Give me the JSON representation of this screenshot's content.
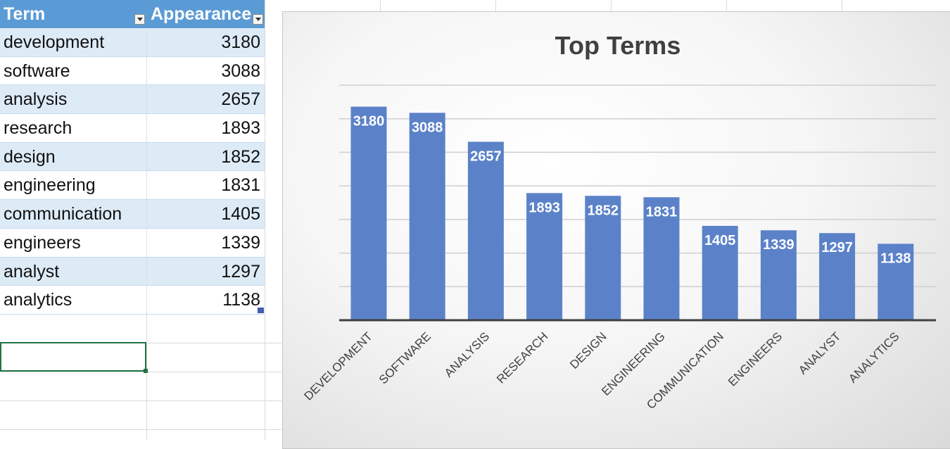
{
  "table": {
    "headers": {
      "term": "Term",
      "appearance": "Appearance"
    },
    "rows": [
      {
        "term": "development",
        "count": "3180"
      },
      {
        "term": "software",
        "count": "3088"
      },
      {
        "term": "analysis",
        "count": "2657"
      },
      {
        "term": "research",
        "count": "1893"
      },
      {
        "term": "design",
        "count": "1852"
      },
      {
        "term": "engineering",
        "count": "1831"
      },
      {
        "term": "communication",
        "count": "1405"
      },
      {
        "term": "engineers",
        "count": "1339"
      },
      {
        "term": "analyst",
        "count": "1297"
      },
      {
        "term": "analytics",
        "count": "1138"
      }
    ]
  },
  "chart_data": {
    "type": "bar",
    "title": "Top Terms",
    "categories": [
      "DEVELOPMENT",
      "SOFTWARE",
      "ANALYSIS",
      "RESEARCH",
      "DESIGN",
      "ENGINEERING",
      "COMMUNICATION",
      "ENGINEERS",
      "ANALYST",
      "ANALYTICS"
    ],
    "values": [
      3180,
      3088,
      2657,
      1893,
      1852,
      1831,
      1405,
      1339,
      1297,
      1138
    ],
    "xlabel": "",
    "ylabel": "",
    "ylim": [
      0,
      3500
    ],
    "grid": true,
    "bar_color": "#5b82c9",
    "data_labels": true
  }
}
